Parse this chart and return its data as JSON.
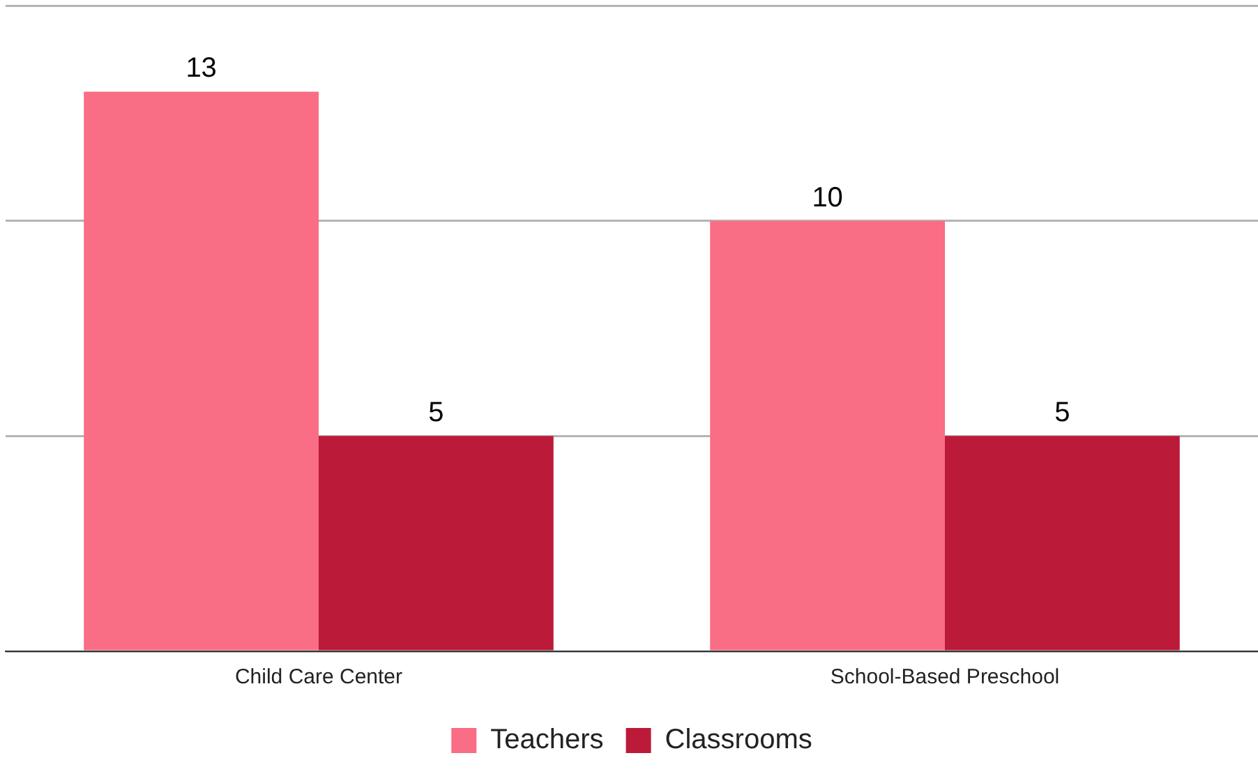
{
  "chart_data": {
    "type": "bar",
    "categories": [
      "Child Care Center",
      "School-Based Preschool"
    ],
    "series": [
      {
        "name": "Teachers",
        "color": "#f96d85",
        "values": [
          13,
          10
        ]
      },
      {
        "name": "Classrooms",
        "color": "#bb1a38",
        "values": [
          5,
          5
        ]
      }
    ],
    "ylim": [
      0,
      15
    ],
    "yticks": [
      0,
      5,
      10,
      15
    ],
    "tick_labels": "x",
    "grid": "y",
    "legend": "bottom",
    "data_labels": true
  }
}
